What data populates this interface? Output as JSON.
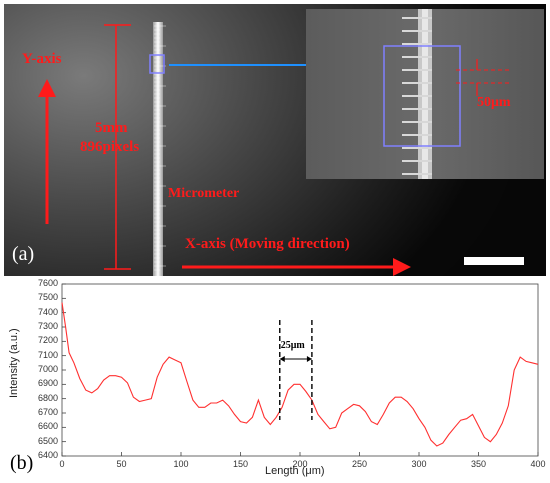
{
  "panel_a": {
    "label": "(a)",
    "y_axis_label": "Y-axis",
    "x_axis_label": "X-axis (Moving direction)",
    "scale_mm": "5mm",
    "scale_pixels": "896pixels",
    "micrometer_label": "Micrometer",
    "inset_scale_label": "50μm",
    "annotation_color": "#ff1b1b",
    "roi_color": "#8080ff",
    "pointer_color": "#1e90ff"
  },
  "panel_b": {
    "label": "(b)",
    "fwhm_label": "25μm",
    "line_color": "#ff3030"
  },
  "chart_data": {
    "type": "line",
    "xlabel": "Length  (μm)",
    "ylabel": "Intensity  (a.u.)",
    "xlim": [
      0,
      400
    ],
    "ylim": [
      6400,
      7600
    ],
    "xticks": [
      0,
      50,
      100,
      150,
      200,
      250,
      300,
      350,
      400
    ],
    "yticks": [
      6400,
      6500,
      6600,
      6700,
      6800,
      6900,
      7000,
      7100,
      7200,
      7300,
      7400,
      7500,
      7600
    ],
    "grid": false,
    "series": [
      {
        "x": [
          0,
          3,
          6,
          10,
          15,
          20,
          25,
          30,
          35,
          40,
          45,
          50,
          55,
          60,
          65,
          70,
          75,
          80,
          85,
          90,
          95,
          100,
          105,
          110,
          115,
          120,
          125,
          130,
          135,
          140,
          145,
          150,
          155,
          160,
          165,
          170,
          175,
          180,
          185,
          190,
          195,
          200,
          205,
          210,
          215,
          220,
          225,
          230,
          235,
          240,
          245,
          250,
          255,
          260,
          265,
          270,
          275,
          280,
          285,
          290,
          295,
          300,
          305,
          310,
          315,
          320,
          325,
          330,
          335,
          340,
          345,
          350,
          355,
          360,
          365,
          370,
          375,
          380,
          385,
          390,
          395,
          400
        ],
        "y": [
          7470,
          7300,
          7120,
          7050,
          6940,
          6860,
          6840,
          6870,
          6930,
          6960,
          6960,
          6950,
          6910,
          6810,
          6780,
          6790,
          6800,
          6950,
          7040,
          7090,
          7070,
          7050,
          6920,
          6790,
          6740,
          6740,
          6770,
          6770,
          6790,
          6750,
          6690,
          6640,
          6630,
          6670,
          6790,
          6670,
          6620,
          6670,
          6740,
          6860,
          6900,
          6900,
          6850,
          6790,
          6690,
          6640,
          6590,
          6600,
          6700,
          6730,
          6760,
          6750,
          6710,
          6640,
          6620,
          6690,
          6770,
          6810,
          6810,
          6780,
          6730,
          6660,
          6600,
          6510,
          6470,
          6490,
          6550,
          6600,
          6650,
          6660,
          6690,
          6610,
          6530,
          6500,
          6550,
          6630,
          6750,
          7000,
          7090,
          7060,
          7050,
          7040
        ]
      }
    ],
    "fwhm_markers_x": [
      183,
      210
    ]
  }
}
